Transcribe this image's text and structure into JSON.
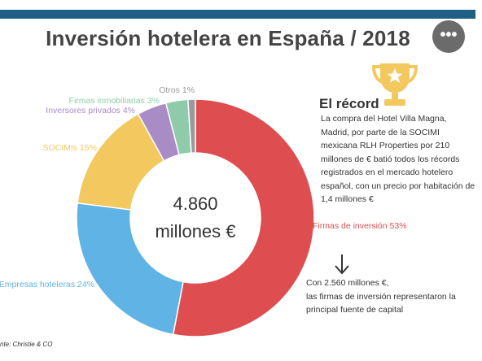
{
  "title": "Inversión hotelera en España / 2018",
  "more_button": "•••",
  "chart_data": {
    "type": "pie",
    "variant": "donut",
    "center_text": [
      "4.860",
      "millones €"
    ],
    "slices": [
      {
        "label": "Firmas de inversión 53%",
        "value": 53,
        "color": "#de4e51"
      },
      {
        "label": "Empresas hoteleras 24%",
        "value": 24,
        "color": "#5fb4e5"
      },
      {
        "label": "SOCIMIs 15%",
        "value": 15,
        "color": "#f2c85f"
      },
      {
        "label": "Inversores privados 4%",
        "value": 4,
        "color": "#a98bc6"
      },
      {
        "label": "Firmas inmobiliarias 3%",
        "value": 3,
        "color": "#8fcbab"
      },
      {
        "label": "Otros 1%",
        "value": 1,
        "color": "#9a9a9a"
      }
    ]
  },
  "record": {
    "title": "El récord",
    "text": "La compra del Hotel Villa Magna, Madrid, por parte de la SOCIMI mexicana RLH Properties por 210 millones de € batió todos los récords registrados en el mercado hotelero español, con un precio por habitación de 1,4 millones €"
  },
  "callout": {
    "line1": "Con 2.560 millones €,",
    "line2": "las firmas de inversión representaron la principal fuente de capital"
  },
  "source": "nte: Christie & CO"
}
